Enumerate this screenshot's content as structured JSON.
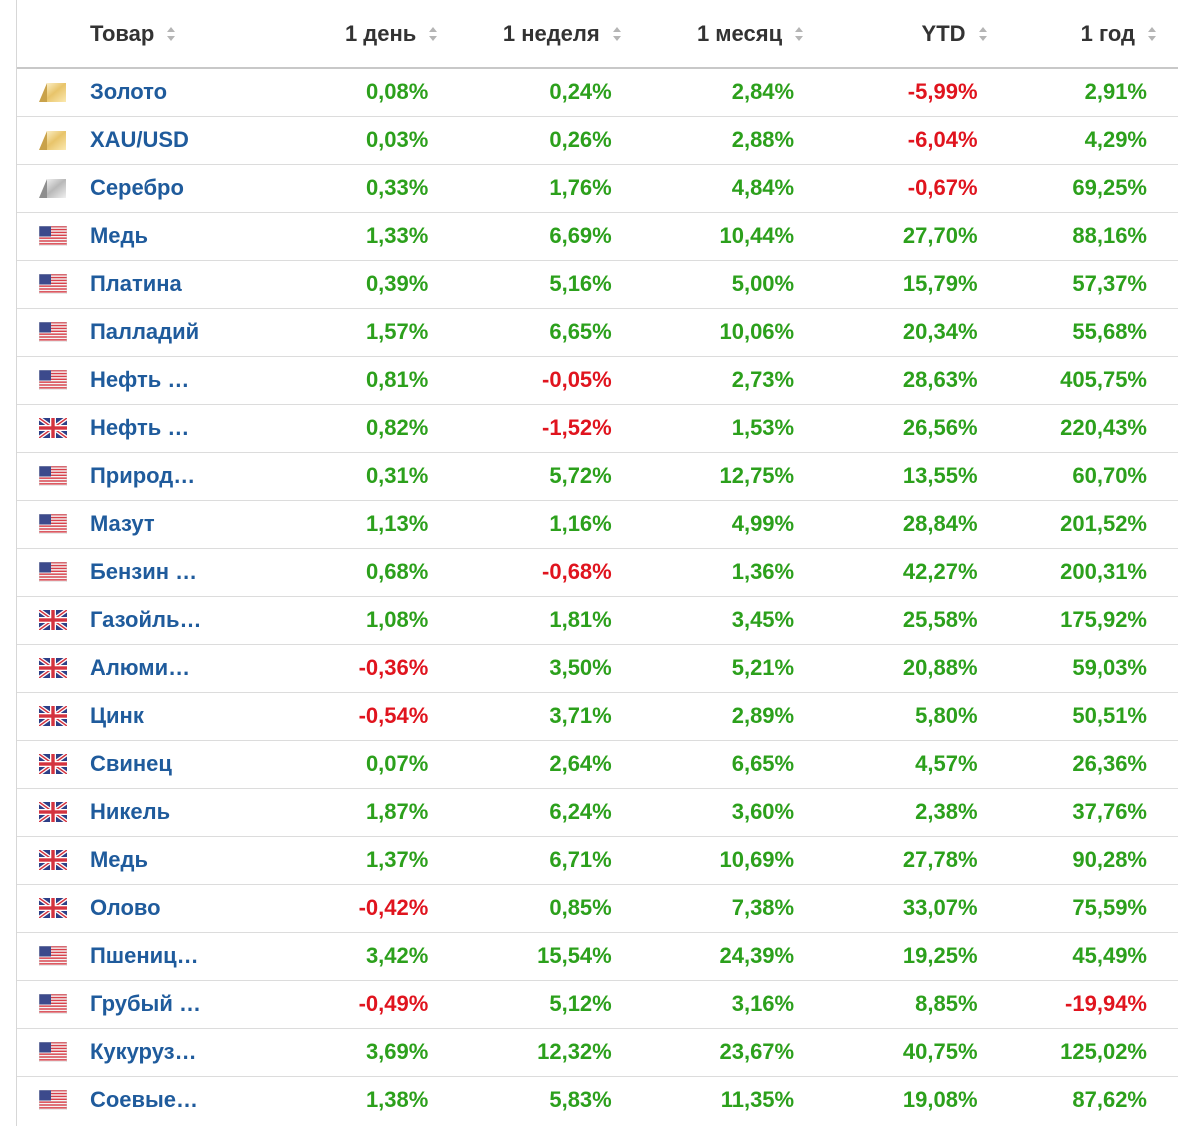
{
  "header": {
    "product": "Товар",
    "day": "1 день",
    "week": "1 неделя",
    "month": "1 месяц",
    "ytd": "YTD",
    "year": "1 год"
  },
  "colors": {
    "positive": "#2ca01c",
    "negative": "#e0141e",
    "link": "#1f5b9c"
  },
  "rows": [
    {
      "flag": "gold-icon",
      "name": "Золото",
      "day": "0,08%",
      "week": "0,24%",
      "month": "2,84%",
      "ytd": "-5,99%",
      "year": "2,91%"
    },
    {
      "flag": "gold-icon",
      "name": "XAU/USD",
      "day": "0,03%",
      "week": "0,26%",
      "month": "2,88%",
      "ytd": "-6,04%",
      "year": "4,29%"
    },
    {
      "flag": "silver-icon",
      "name": "Серебро",
      "day": "0,33%",
      "week": "1,76%",
      "month": "4,84%",
      "ytd": "-0,67%",
      "year": "69,25%"
    },
    {
      "flag": "us-flag-icon",
      "name": "Медь",
      "day": "1,33%",
      "week": "6,69%",
      "month": "10,44%",
      "ytd": "27,70%",
      "year": "88,16%"
    },
    {
      "flag": "us-flag-icon",
      "name": "Платина",
      "day": "0,39%",
      "week": "5,16%",
      "month": "5,00%",
      "ytd": "15,79%",
      "year": "57,37%"
    },
    {
      "flag": "us-flag-icon",
      "name": "Палладий",
      "day": "1,57%",
      "week": "6,65%",
      "month": "10,06%",
      "ytd": "20,34%",
      "year": "55,68%"
    },
    {
      "flag": "us-flag-icon",
      "name": "Нефть …",
      "day": "0,81%",
      "week": "-0,05%",
      "month": "2,73%",
      "ytd": "28,63%",
      "year": "405,75%"
    },
    {
      "flag": "uk-flag-icon",
      "name": "Нефть …",
      "day": "0,82%",
      "week": "-1,52%",
      "month": "1,53%",
      "ytd": "26,56%",
      "year": "220,43%"
    },
    {
      "flag": "us-flag-icon",
      "name": "Природ…",
      "day": "0,31%",
      "week": "5,72%",
      "month": "12,75%",
      "ytd": "13,55%",
      "year": "60,70%"
    },
    {
      "flag": "us-flag-icon",
      "name": "Мазут",
      "day": "1,13%",
      "week": "1,16%",
      "month": "4,99%",
      "ytd": "28,84%",
      "year": "201,52%"
    },
    {
      "flag": "us-flag-icon",
      "name": "Бензин …",
      "day": "0,68%",
      "week": "-0,68%",
      "month": "1,36%",
      "ytd": "42,27%",
      "year": "200,31%"
    },
    {
      "flag": "uk-flag-icon",
      "name": "Газойль…",
      "day": "1,08%",
      "week": "1,81%",
      "month": "3,45%",
      "ytd": "25,58%",
      "year": "175,92%"
    },
    {
      "flag": "uk-flag-icon",
      "name": "Алюми…",
      "day": "-0,36%",
      "week": "3,50%",
      "month": "5,21%",
      "ytd": "20,88%",
      "year": "59,03%"
    },
    {
      "flag": "uk-flag-icon",
      "name": "Цинк",
      "day": "-0,54%",
      "week": "3,71%",
      "month": "2,89%",
      "ytd": "5,80%",
      "year": "50,51%"
    },
    {
      "flag": "uk-flag-icon",
      "name": "Свинец",
      "day": "0,07%",
      "week": "2,64%",
      "month": "6,65%",
      "ytd": "4,57%",
      "year": "26,36%"
    },
    {
      "flag": "uk-flag-icon",
      "name": "Никель",
      "day": "1,87%",
      "week": "6,24%",
      "month": "3,60%",
      "ytd": "2,38%",
      "year": "37,76%"
    },
    {
      "flag": "uk-flag-icon",
      "name": "Медь",
      "day": "1,37%",
      "week": "6,71%",
      "month": "10,69%",
      "ytd": "27,78%",
      "year": "90,28%"
    },
    {
      "flag": "uk-flag-icon",
      "name": "Олово",
      "day": "-0,42%",
      "week": "0,85%",
      "month": "7,38%",
      "ytd": "33,07%",
      "year": "75,59%"
    },
    {
      "flag": "us-flag-icon",
      "name": "Пшениц…",
      "day": "3,42%",
      "week": "15,54%",
      "month": "24,39%",
      "ytd": "19,25%",
      "year": "45,49%"
    },
    {
      "flag": "us-flag-icon",
      "name": "Грубый …",
      "day": "-0,49%",
      "week": "5,12%",
      "month": "3,16%",
      "ytd": "8,85%",
      "year": "-19,94%"
    },
    {
      "flag": "us-flag-icon",
      "name": "Кукуруз…",
      "day": "3,69%",
      "week": "12,32%",
      "month": "23,67%",
      "ytd": "40,75%",
      "year": "125,02%"
    },
    {
      "flag": "us-flag-icon",
      "name": "Соевые…",
      "day": "1,38%",
      "week": "5,83%",
      "month": "11,35%",
      "ytd": "19,08%",
      "year": "87,62%"
    }
  ]
}
